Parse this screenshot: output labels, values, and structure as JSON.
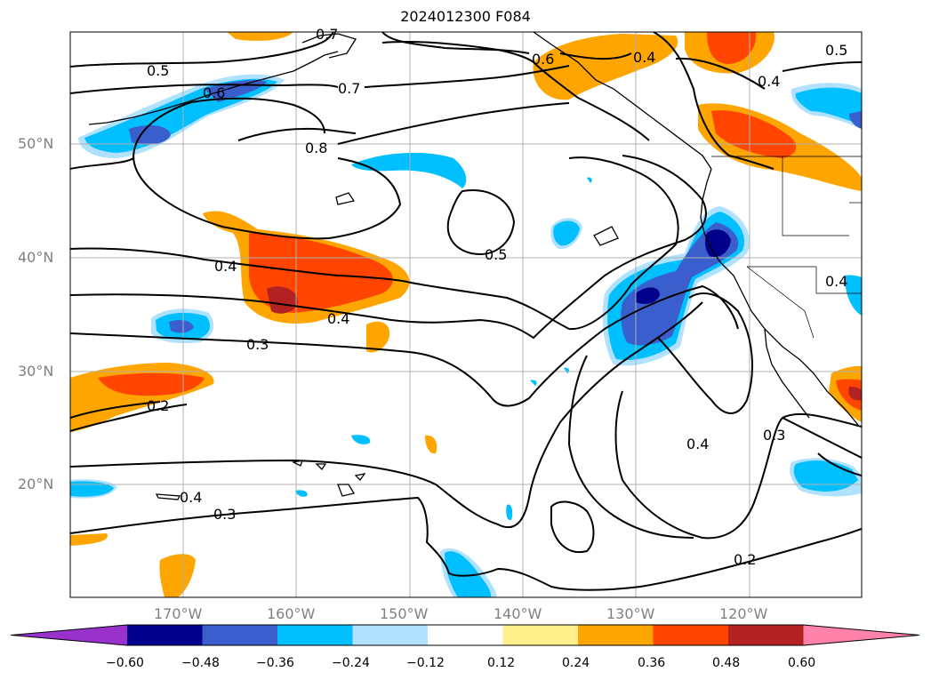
{
  "title": "2024012300 F084",
  "lat_ticks": [
    "50°N",
    "40°N",
    "30°N",
    "20°N"
  ],
  "lon_ticks": [
    "170°W",
    "160°W",
    "150°W",
    "140°W",
    "130°W",
    "120°W"
  ],
  "contour_labels": [
    "0.5",
    "0.6",
    "0.7",
    "0.8",
    "0.6",
    "0.4",
    "0.5",
    "0.4",
    "0.5",
    "0.4",
    "0.4",
    "0.3",
    "0.2",
    "0.4",
    "0.3",
    "0.3",
    "0.4",
    "0.2",
    "0.4",
    "0.7"
  ],
  "colorbar": {
    "ticks": [
      "−0.60",
      "−0.48",
      "−0.36",
      "−0.24",
      "−0.12",
      "0.12",
      "0.24",
      "0.36",
      "0.48",
      "0.60"
    ],
    "colors": [
      "#9932cc",
      "#00008b",
      "#3a5fcd",
      "#00bfff",
      "#b0e2ff",
      "#ffffff",
      "#fff08c",
      "#ffa500",
      "#ff4500",
      "#b22222",
      "#ff82ab"
    ]
  }
}
